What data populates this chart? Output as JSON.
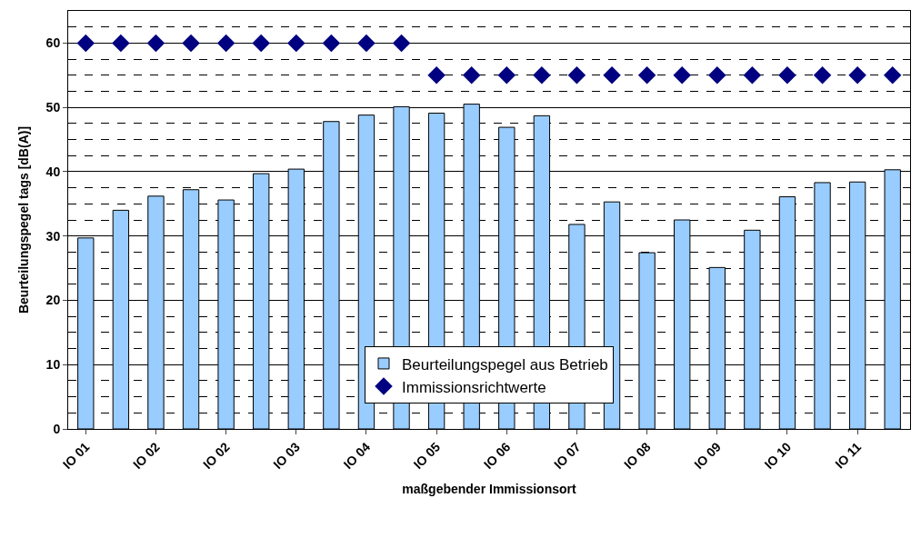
{
  "chart_data": {
    "type": "bar",
    "xlabel": "maßgebender Immissionsort",
    "ylabel": "Beurteilungspegel tags [dB(A)]",
    "categories": [
      "IO 01",
      null,
      "IO 02",
      null,
      "IO 02",
      null,
      "IO 03",
      null,
      "IO 04",
      null,
      "IO 05",
      null,
      "IO 06",
      null,
      "IO 07",
      null,
      "IO 08",
      null,
      "IO 09",
      null,
      "IO 10",
      null,
      "IO 11",
      null
    ],
    "series": [
      {
        "name": "Beurteilungspegel aus Betrieb",
        "color": "#99ccff",
        "values": [
          29.7,
          34.0,
          36.2,
          37.2,
          35.6,
          39.7,
          40.4,
          47.8,
          48.8,
          50.1,
          49.1,
          50.5,
          46.9,
          48.7,
          31.8,
          35.3,
          27.4,
          32.5,
          25.1,
          30.9,
          36.1,
          38.3,
          38.4,
          40.3
        ]
      },
      {
        "name": "Immissionsrichtwerte",
        "type": "scatter",
        "marker": "diamond",
        "color": "#000080",
        "values": [
          60,
          60,
          60,
          60,
          60,
          60,
          60,
          60,
          60,
          60,
          55,
          55,
          55,
          55,
          55,
          55,
          55,
          55,
          55,
          55,
          55,
          55,
          55,
          55
        ]
      }
    ],
    "ylim": [
      0,
      65
    ],
    "yticks": [
      0,
      10,
      20,
      30,
      40,
      50,
      60
    ],
    "grid": "y",
    "legend": "bottom"
  }
}
